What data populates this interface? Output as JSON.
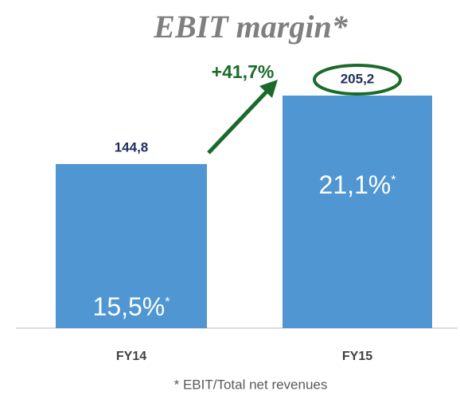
{
  "chart_data": {
    "type": "bar",
    "title": "EBIT margin*",
    "categories": [
      "FY14",
      "FY15"
    ],
    "values": [
      144.8,
      205.2
    ],
    "value_labels": [
      "144,8",
      "205,2"
    ],
    "color": "#4f96d3",
    "margins": [
      "15,5%",
      "21,1%"
    ],
    "margin_marker": "*",
    "growth_annotation": "+41,7%",
    "footnote": "* EBIT/Total net revenues"
  }
}
